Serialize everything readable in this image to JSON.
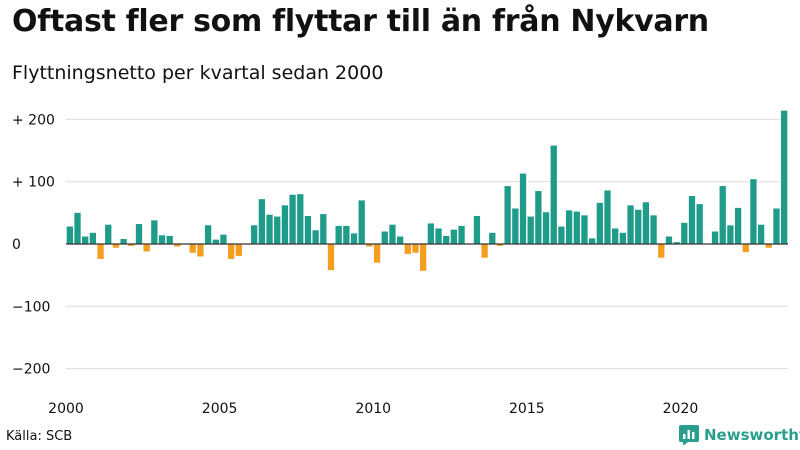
{
  "title": "Oftast fler som flyttar till än från Nykvarn",
  "subtitle": "Flyttningsnetto per kvartal sedan 2000",
  "source": "Källa: SCB",
  "brand": "Newsworthy",
  "colors": {
    "positive": "#1f9b8a",
    "negative": "#f59d1f",
    "grid": "#dddddd",
    "zero": "#333333",
    "brand": "#2a9d8f"
  },
  "chart_data": {
    "type": "bar",
    "title": "Oftast fler som flyttar till än från Nykvarn",
    "subtitle": "Flyttningsnetto per kvartal sedan 2000",
    "xlabel": "",
    "ylabel": "",
    "start_year": 2000,
    "periods_per_year": 4,
    "ylim": [
      -220,
      220
    ],
    "y_ticks": [
      200,
      100,
      0,
      -100,
      -200
    ],
    "y_tick_labels": [
      "+ 200",
      "+ 100",
      "0",
      "−100",
      "−200"
    ],
    "x_ticks": [
      2000,
      2005,
      2010,
      2015,
      2020
    ],
    "x_tick_labels": [
      "2000",
      "2005",
      "2010",
      "2015",
      "2020"
    ],
    "values": [
      28,
      50,
      12,
      18,
      -24,
      31,
      -6,
      8,
      -3,
      32,
      -12,
      38,
      14,
      13,
      -4,
      0,
      -14,
      -20,
      30,
      7,
      15,
      -24,
      -19,
      0,
      30,
      72,
      47,
      44,
      62,
      79,
      80,
      45,
      22,
      48,
      -42,
      29,
      29,
      17,
      70,
      -4,
      -30,
      20,
      31,
      12,
      -16,
      -14,
      -43,
      33,
      25,
      13,
      23,
      29,
      0,
      45,
      -22,
      18,
      -3,
      93,
      57,
      113,
      44,
      85,
      51,
      158,
      28,
      54,
      52,
      46,
      9,
      66,
      86,
      25,
      18,
      62,
      55,
      67,
      46,
      -22,
      12,
      3,
      34,
      77,
      64,
      0,
      20,
      93,
      30,
      58,
      -13,
      104,
      31,
      -6,
      57,
      214
    ]
  }
}
